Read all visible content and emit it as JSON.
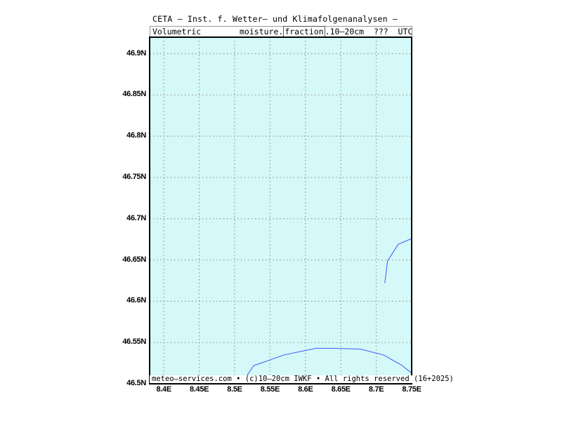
{
  "header": {
    "title": "CETA — Inst. f. Wetter— und Klimafolgenanalysen —",
    "subtitle_left": "Volumetric",
    "subtitle_mid": "moisture.",
    "subtitle_boxed": "fraction",
    "subtitle_right": ".10—20cm  ???  UTC"
  },
  "footer": {
    "text": "meteo—services.com • (c)10—20cm IWKF • All rights reserved (16+2025)"
  },
  "map": {
    "lon_range": [
      8.38,
      8.75
    ],
    "lat_range": [
      46.5,
      46.92
    ],
    "x_ticks": [
      "8.4E",
      "8.45E",
      "8.5E",
      "8.55E",
      "8.6E",
      "8.65E",
      "8.7E",
      "8.75E"
    ],
    "y_ticks": [
      "46.9N",
      "46.85N",
      "46.8N",
      "46.75N",
      "46.7N",
      "46.65N",
      "46.6N",
      "46.55N",
      "46.5N"
    ],
    "background_color": "#d5f8f8",
    "grid_color": "#999999",
    "border_line_color": "#3b5bff",
    "border_lines": [
      [
        [
          8.505,
          46.5
        ],
        [
          8.515,
          46.507
        ],
        [
          8.527,
          46.522
        ],
        [
          8.57,
          46.535
        ],
        [
          8.615,
          46.543
        ],
        [
          8.64,
          46.543
        ],
        [
          8.678,
          46.542
        ],
        [
          8.71,
          46.535
        ],
        [
          8.735,
          46.523
        ],
        [
          8.75,
          46.513
        ]
      ],
      [
        [
          8.712,
          46.622
        ],
        [
          8.716,
          46.649
        ],
        [
          8.731,
          46.669
        ],
        [
          8.75,
          46.676
        ]
      ]
    ]
  }
}
